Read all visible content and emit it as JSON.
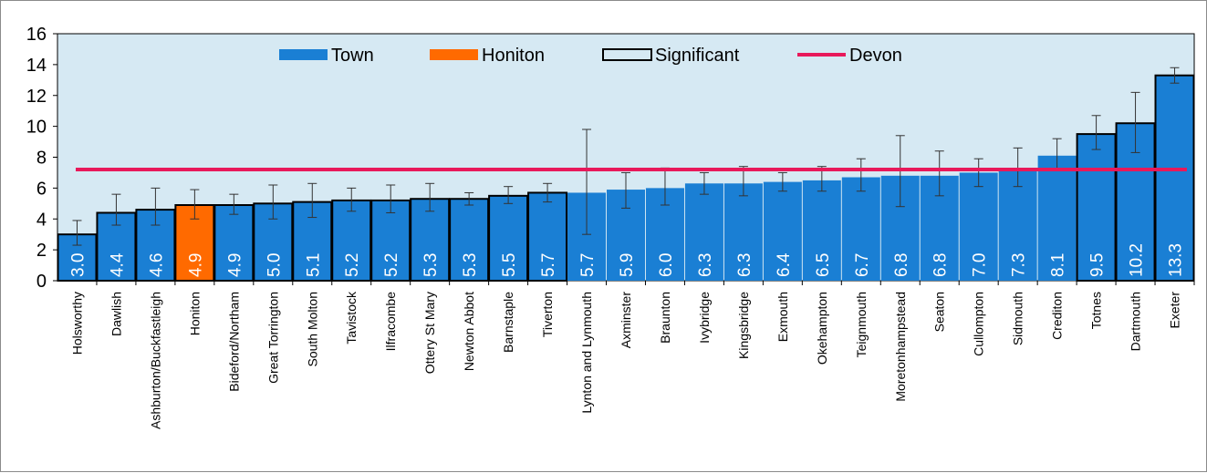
{
  "chart_data": {
    "type": "bar",
    "categories": [
      "Holsworthy",
      "Dawlish",
      "Ashburton/Buckfastleigh",
      "Honiton",
      "Bideford/Northam",
      "Great Torrington",
      "South Molton",
      "Tavistock",
      "Ilfracombe",
      "Ottery St Mary",
      "Newton Abbot",
      "Barnstaple",
      "Tiverton",
      "Lynton and Lynmouth",
      "Axminster",
      "Braunton",
      "Ivybridge",
      "Kingsbridge",
      "Exmouth",
      "Okehampton",
      "Teignmouth",
      "Moretonhampstead",
      "Seaton",
      "Cullompton",
      "Sidmouth",
      "Crediton",
      "Totnes",
      "Dartmouth",
      "Exeter"
    ],
    "values": [
      3.0,
      4.4,
      4.6,
      4.9,
      4.9,
      5.0,
      5.1,
      5.2,
      5.2,
      5.3,
      5.3,
      5.5,
      5.7,
      5.7,
      5.9,
      6.0,
      6.3,
      6.3,
      6.4,
      6.5,
      6.7,
      6.8,
      6.8,
      7.0,
      7.3,
      8.1,
      9.5,
      10.2,
      13.3
    ],
    "value_labels": [
      "3.0",
      "4.4",
      "4.6",
      "4.9",
      "4.9",
      "5.0",
      "5.1",
      "5.2",
      "5.2",
      "5.3",
      "5.3",
      "5.5",
      "5.7",
      "5.7",
      "5.9",
      "6.0",
      "6.3",
      "6.3",
      "6.4",
      "6.5",
      "6.7",
      "6.8",
      "6.8",
      "7.0",
      "7.3",
      "8.1",
      "9.5",
      "10.2",
      "13.3"
    ],
    "error_low": [
      2.3,
      3.6,
      3.6,
      4.0,
      4.3,
      4.0,
      4.1,
      4.5,
      4.4,
      4.5,
      4.9,
      5.0,
      5.1,
      3.0,
      4.7,
      4.9,
      5.6,
      5.5,
      5.8,
      5.8,
      5.8,
      4.8,
      5.5,
      6.1,
      6.1,
      7.2,
      8.5,
      8.3,
      12.8
    ],
    "error_high": [
      3.9,
      5.6,
      6.0,
      5.9,
      5.6,
      6.2,
      6.3,
      6.0,
      6.2,
      6.3,
      5.7,
      6.1,
      6.3,
      9.8,
      7.0,
      7.3,
      7.0,
      7.4,
      7.0,
      7.4,
      7.9,
      9.4,
      8.4,
      7.9,
      8.6,
      9.2,
      10.7,
      12.2,
      13.8
    ],
    "highlight": [
      false,
      false,
      false,
      true,
      false,
      false,
      false,
      false,
      false,
      false,
      false,
      false,
      false,
      false,
      false,
      false,
      false,
      false,
      false,
      false,
      false,
      false,
      false,
      false,
      false,
      false,
      false,
      false,
      false
    ],
    "significant": [
      true,
      true,
      true,
      true,
      true,
      true,
      true,
      true,
      true,
      true,
      true,
      true,
      true,
      false,
      false,
      false,
      false,
      false,
      false,
      false,
      false,
      false,
      false,
      false,
      false,
      false,
      true,
      true,
      true
    ],
    "reference": {
      "name": "Devon",
      "value": 7.2
    },
    "ylim": [
      0,
      16
    ],
    "yticks": [
      "0",
      "2",
      "4",
      "6",
      "8",
      "10",
      "12",
      "14",
      "16"
    ],
    "grid": false,
    "legend_position": "top",
    "legend": [
      {
        "label": "Town",
        "kind": "bar",
        "color": "#1a7fd4"
      },
      {
        "label": "Honiton",
        "kind": "bar",
        "color": "#ff6a00"
      },
      {
        "label": "Significant",
        "kind": "outline",
        "color": "#000000"
      },
      {
        "label": "Devon",
        "kind": "line",
        "color": "#e8195a"
      }
    ],
    "colors": {
      "town": "#1a7fd4",
      "highlight": "#ff6a00",
      "reference": "#e8195a",
      "plot_bg": "#d6e9f3"
    },
    "title": "",
    "xlabel": "",
    "ylabel": ""
  }
}
